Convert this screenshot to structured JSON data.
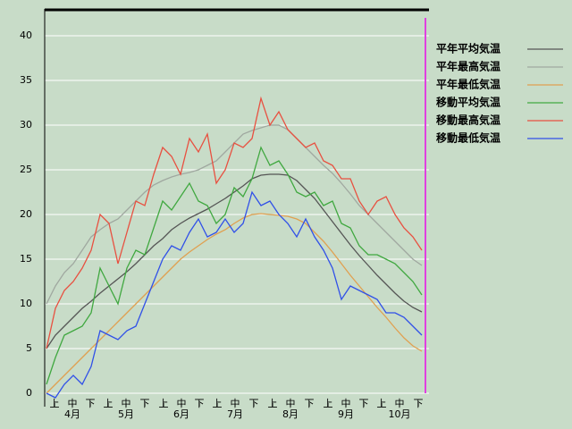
{
  "chart_data": {
    "type": "line",
    "x": [
      0,
      5,
      10,
      15,
      20,
      25,
      30,
      35,
      40,
      45,
      50,
      55,
      60,
      65,
      70,
      75,
      80,
      85,
      90,
      95,
      100,
      105,
      110,
      115,
      120,
      125,
      130,
      135,
      140,
      145,
      150,
      155,
      160,
      165,
      170,
      175,
      180,
      185,
      190,
      195,
      200,
      205,
      210
    ],
    "xlim": [
      -1,
      214
    ],
    "ylim": [
      -1.5,
      43
    ],
    "yticks": [
      0,
      5,
      10,
      15,
      20,
      25,
      30,
      35,
      40
    ],
    "grid": true,
    "legend": "top-right",
    "xticks": [
      {
        "value": 4.5,
        "label": "上"
      },
      {
        "value": 14.5,
        "label": "中"
      },
      {
        "value": 24.5,
        "label": "下"
      },
      {
        "value": 34.5,
        "label": "上"
      },
      {
        "value": 44.5,
        "label": "中"
      },
      {
        "value": 55,
        "label": "下"
      },
      {
        "value": 65.5,
        "label": "上"
      },
      {
        "value": 75.5,
        "label": "中"
      },
      {
        "value": 85.5,
        "label": "下"
      },
      {
        "value": 95.5,
        "label": "上"
      },
      {
        "value": 105.5,
        "label": "中"
      },
      {
        "value": 116,
        "label": "下"
      },
      {
        "value": 126.5,
        "label": "上"
      },
      {
        "value": 136.5,
        "label": "中"
      },
      {
        "value": 147,
        "label": "下"
      },
      {
        "value": 157.5,
        "label": "上"
      },
      {
        "value": 167.5,
        "label": "中"
      },
      {
        "value": 177.5,
        "label": "下"
      },
      {
        "value": 187.5,
        "label": "上"
      },
      {
        "value": 197.5,
        "label": "中"
      },
      {
        "value": 208,
        "label": "下"
      }
    ],
    "month_ticks": [
      {
        "value": 14.5,
        "label": "4月"
      },
      {
        "value": 44.5,
        "label": "5月"
      },
      {
        "value": 75.5,
        "label": "6月"
      },
      {
        "value": 105.5,
        "label": "7月"
      },
      {
        "value": 136.5,
        "label": "8月"
      },
      {
        "value": 167.5,
        "label": "9月"
      },
      {
        "value": 197.5,
        "label": "10月"
      }
    ],
    "series": [
      {
        "name": "平年平均気温",
        "color": "#555555",
        "values": [
          5,
          6.5,
          7.5,
          8.5,
          9.5,
          10.3,
          11.2,
          12,
          12.8,
          13.6,
          14.5,
          15.5,
          16.5,
          17.3,
          18.3,
          19,
          19.6,
          20.1,
          20.6,
          21.2,
          21.8,
          22.5,
          23.2,
          24,
          24.4,
          24.5,
          24.5,
          24.4,
          23.8,
          22.8,
          21.8,
          20.5,
          19.2,
          17.9,
          16.6,
          15.4,
          14.3,
          13.2,
          12.2,
          11.2,
          10.3,
          9.6,
          9.1
        ]
      },
      {
        "name": "平年最高気温",
        "color": "#a0a8a0",
        "values": [
          10,
          12,
          13.5,
          14.5,
          16,
          17.5,
          18.3,
          19,
          19.5,
          20.5,
          21.5,
          22.5,
          23.3,
          23.8,
          24.2,
          24.5,
          24.7,
          25,
          25.5,
          26,
          27,
          28,
          29,
          29.4,
          29.7,
          30,
          30,
          29.5,
          28.5,
          27.5,
          26.5,
          25.5,
          24.6,
          23.5,
          22.3,
          21,
          20,
          19,
          18,
          17,
          16,
          15,
          14.3
        ]
      },
      {
        "name": "平年最低気温",
        "color": "#e0a050",
        "values": [
          0,
          1,
          2,
          3,
          4,
          5,
          6,
          7,
          8,
          9,
          10,
          11,
          12,
          13,
          14,
          15,
          15.8,
          16.5,
          17.2,
          17.8,
          18.3,
          19,
          19.6,
          20,
          20.1,
          20,
          19.9,
          19.8,
          19.5,
          19,
          18,
          17,
          15.8,
          14.5,
          13.2,
          12,
          10.8,
          9.6,
          8.5,
          7.3,
          6.2,
          5.3,
          4.7
        ]
      },
      {
        "name": "移動平均気温",
        "color": "#40a840",
        "values": [
          1,
          4,
          6.5,
          7,
          7.5,
          9,
          14,
          12,
          10,
          14,
          16,
          15.5,
          18.5,
          21.5,
          20.5,
          22,
          23.5,
          21.5,
          21,
          19,
          20,
          23,
          22,
          24,
          27.5,
          25.5,
          26,
          24.5,
          22.5,
          22,
          22.5,
          21,
          21.5,
          19,
          18.5,
          16.5,
          15.5,
          15.5,
          15,
          14.5,
          13.5,
          12.5,
          11
        ]
      },
      {
        "name": "移動最高気温",
        "color": "#e85040",
        "values": [
          5,
          9.5,
          11.5,
          12.5,
          14,
          16,
          20,
          19,
          14.5,
          18,
          21.5,
          21,
          24.5,
          27.5,
          26.5,
          24.5,
          28.5,
          27,
          29,
          23.5,
          25,
          28,
          27.5,
          28.5,
          33,
          30,
          31.5,
          29.5,
          28.5,
          27.5,
          28,
          26,
          25.5,
          24,
          24,
          21.5,
          20,
          21.5,
          22,
          20,
          18.5,
          17.5,
          16
        ]
      },
      {
        "name": "移動最低気温",
        "color": "#3050e8",
        "values": [
          0,
          -0.5,
          1,
          2,
          1,
          3,
          7,
          6.5,
          6,
          7,
          7.5,
          10,
          12.5,
          15,
          16.5,
          16,
          18,
          19.5,
          17.5,
          18,
          19.5,
          18,
          19,
          22.5,
          21,
          21.5,
          20,
          19,
          17.5,
          19.5,
          17.5,
          16,
          14,
          10.5,
          12,
          11.5,
          11,
          10.5,
          9,
          9,
          8.5,
          7.5,
          6.5
        ]
      }
    ]
  }
}
